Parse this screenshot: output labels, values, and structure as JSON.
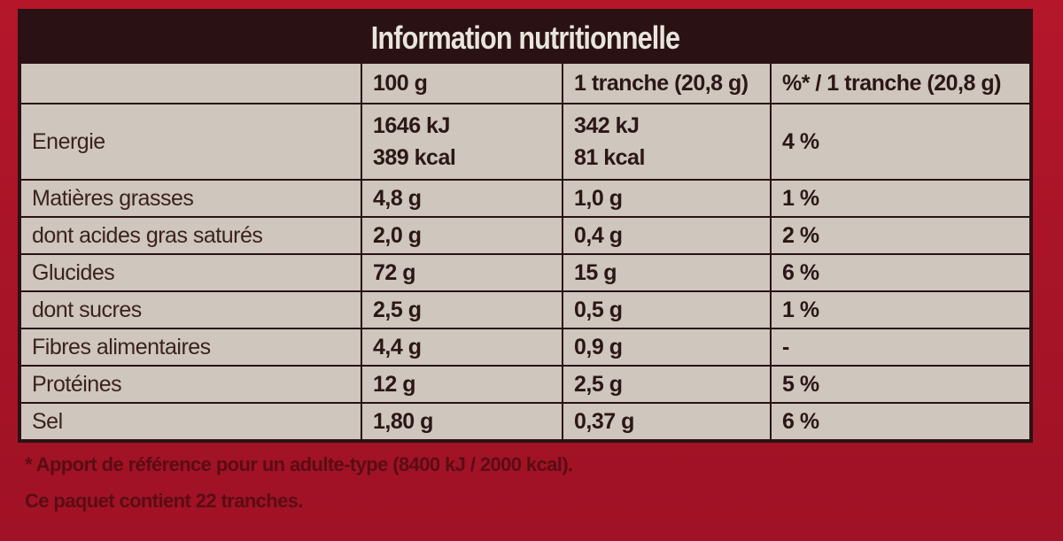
{
  "title": "Information nutritionnelle",
  "columns": [
    "",
    "100 g",
    "1 tranche (20,8 g)",
    "%* / 1 tranche (20,8 g)"
  ],
  "rows": [
    {
      "label": "Energie",
      "per100": [
        "1646 kJ",
        "389 kcal"
      ],
      "perSlice": [
        "342 kJ",
        "81 kcal"
      ],
      "percent": "4 %"
    },
    {
      "label": "Matières grasses",
      "per100": "4,8 g",
      "perSlice": "1,0 g",
      "percent": "1 %"
    },
    {
      "label": "dont acides gras saturés",
      "per100": "2,0 g",
      "perSlice": "0,4 g",
      "percent": "2 %"
    },
    {
      "label": "Glucides",
      "per100": "72 g",
      "perSlice": "15 g",
      "percent": "6 %"
    },
    {
      "label": "dont sucres",
      "per100": "2,5 g",
      "perSlice": "0,5 g",
      "percent": "1 %"
    },
    {
      "label": "Fibres alimentaires",
      "per100": "4,4 g",
      "perSlice": "0,9 g",
      "percent": "-"
    },
    {
      "label": "Protéines",
      "per100": "12 g",
      "perSlice": "2,5 g",
      "percent": "5 %"
    },
    {
      "label": "Sel",
      "per100": "1,80 g",
      "perSlice": "0,37 g",
      "percent": "6 %"
    }
  ],
  "footnotes": [
    "* Apport de référence pour un adulte-type (8400 kJ / 2000 kcal).",
    "Ce paquet contient 22 tranches."
  ],
  "colors": {
    "background": "#a81428",
    "header": "#2a1214",
    "cell": "#cfc6bd",
    "text": "#2b1716"
  }
}
